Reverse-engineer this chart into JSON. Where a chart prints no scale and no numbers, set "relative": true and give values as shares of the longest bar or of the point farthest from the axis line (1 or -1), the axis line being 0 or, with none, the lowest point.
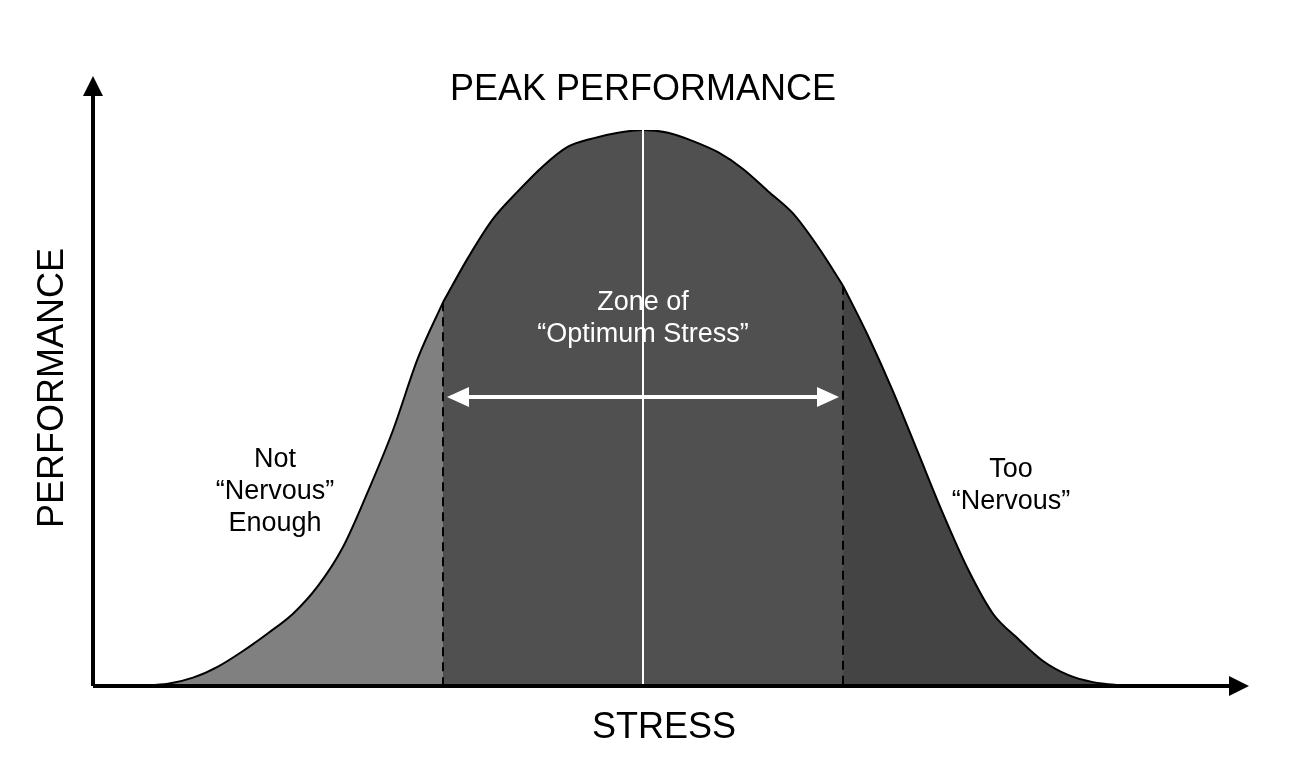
{
  "chart_data": {
    "type": "area",
    "title": "PEAK PERFORMANCE",
    "xlabel": "STRESS",
    "ylabel": "PERFORMANCE",
    "relative": true,
    "legend": false,
    "categories": [
      null,
      null,
      null,
      null,
      null,
      null,
      null,
      null,
      null,
      null,
      null,
      null,
      null,
      null,
      null,
      null,
      null,
      null,
      null,
      null,
      null,
      null,
      null,
      null,
      null,
      null,
      null,
      null,
      null,
      null,
      null,
      null,
      null,
      null,
      null,
      null,
      null,
      null,
      null,
      null,
      null,
      null,
      null,
      null,
      null
    ],
    "series": [
      {
        "name": "Not\n“Nervous”\nEnough",
        "color": "#808080",
        "values": [
          0,
          0,
          0.001,
          0.004,
          0.015,
          0.035,
          0.063,
          0.095,
          0.13,
          0.18,
          0.25,
          0.35,
          0.46,
          0.59,
          0.69,
          null,
          null,
          null,
          null,
          null,
          null,
          null,
          null,
          null,
          null,
          null,
          null,
          null,
          null,
          null,
          null,
          null,
          null,
          null,
          null,
          null,
          null,
          null,
          null,
          null,
          null,
          null,
          null,
          null,
          null
        ]
      },
      {
        "name": "Zone of\n“Optimum Stress”",
        "color": "#505050",
        "values": [
          null,
          null,
          null,
          null,
          null,
          null,
          null,
          null,
          null,
          null,
          null,
          null,
          null,
          null,
          0.69,
          0.77,
          0.84,
          0.89,
          0.935,
          0.97,
          0.985,
          0.995,
          1,
          0.995,
          0.98,
          0.96,
          0.93,
          0.89,
          0.85,
          0.79,
          0.72,
          null,
          null,
          null,
          null,
          null,
          null,
          null,
          null,
          null,
          null,
          null,
          null,
          null,
          null
        ]
      },
      {
        "name": "Too\n“Nervous”",
        "color": "#444444",
        "values": [
          null,
          null,
          null,
          null,
          null,
          null,
          null,
          null,
          null,
          null,
          null,
          null,
          null,
          null,
          null,
          null,
          null,
          null,
          null,
          null,
          null,
          null,
          null,
          null,
          null,
          null,
          null,
          null,
          null,
          null,
          0.72,
          0.63,
          0.53,
          0.42,
          0.31,
          0.21,
          0.13,
          0.085,
          0.045,
          0.02,
          0.007,
          0.002,
          0,
          0,
          0
        ]
      }
    ]
  }
}
